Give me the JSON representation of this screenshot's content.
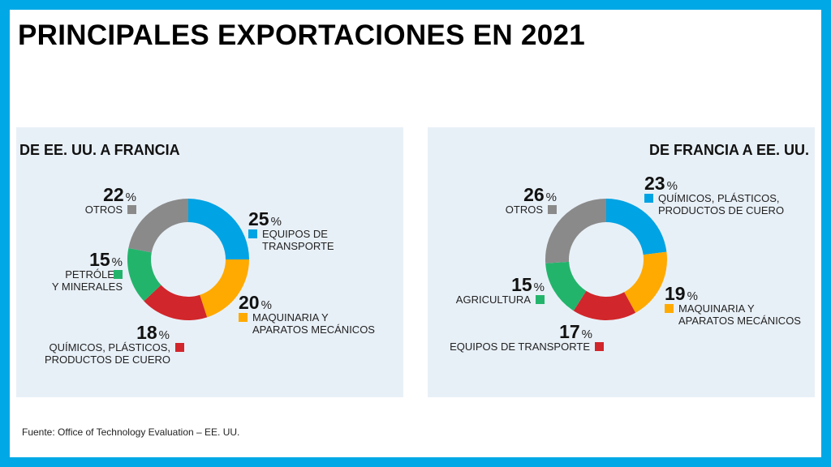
{
  "title": "PRINCIPALES EXPORTACIONES EN 2021",
  "source": "Fuente: Office of Technology Evaluation – EE. UU.",
  "percent_sign": "%",
  "chart_data": [
    {
      "type": "pie",
      "donut": true,
      "title": "DE EE. UU. A FRANCIA",
      "slices": [
        {
          "label": "EQUIPOS DE\nTRANSPORTE",
          "value": 25,
          "color": "#00a3e3"
        },
        {
          "label": "MAQUINARIA Y\nAPARATOS MECÁNICOS",
          "value": 20,
          "color": "#ffaa00"
        },
        {
          "label": "QUÍMICOS, PLÁSTICOS,\nPRODUCTOS DE CUERO",
          "value": 18,
          "color": "#d1262b"
        },
        {
          "label": "PETRÓLEO\nY MINERALES",
          "value": 15,
          "color": "#23b46c"
        },
        {
          "label": "OTROS",
          "value": 22,
          "color": "#8a8a8a"
        }
      ]
    },
    {
      "type": "pie",
      "donut": true,
      "title": "DE FRANCIA A EE. UU.",
      "slices": [
        {
          "label": "QUÍMICOS, PLÁSTICOS,\nPRODUCTOS DE CUERO",
          "value": 23,
          "color": "#00a3e3"
        },
        {
          "label": "MAQUINARIA Y\nAPARATOS MECÁNICOS",
          "value": 19,
          "color": "#ffaa00"
        },
        {
          "label": "EQUIPOS DE TRANSPORTE",
          "value": 17,
          "color": "#d1262b"
        },
        {
          "label": "AGRICULTURA",
          "value": 15,
          "color": "#23b46c"
        },
        {
          "label": "OTROS",
          "value": 26,
          "color": "#8a8a8a"
        }
      ]
    }
  ]
}
